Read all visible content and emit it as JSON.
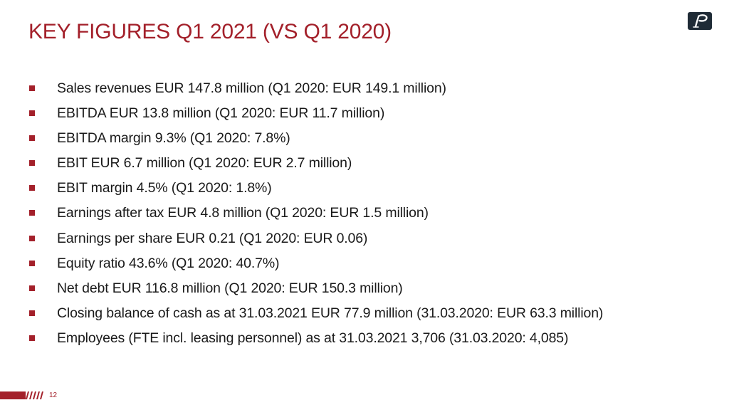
{
  "slide": {
    "title": "KEY FIGURES Q1 2021 (VS Q1 2020)",
    "page_number": "12",
    "logo_icon": "company-logo-p",
    "accent_color": "#a3202a",
    "bullets": [
      "Sales revenues EUR 147.8 million (Q1 2020: EUR 149.1 million)",
      "EBITDA EUR 13.8 million (Q1 2020: EUR 11.7 million)",
      "EBITDA margin 9.3% (Q1 2020: 7.8%)",
      "EBIT EUR 6.7 million (Q1 2020: EUR 2.7 million)",
      "EBIT margin 4.5% (Q1 2020: 1.8%)",
      "Earnings after tax EUR 4.8 million (Q1 2020: EUR 1.5 million)",
      "Earnings per share EUR 0.21 (Q1 2020: EUR 0.06)",
      "Equity ratio 43.6% (Q1 2020: 40.7%)",
      "Net debt EUR 116.8 million (Q1 2020: EUR 150.3 million)",
      "Closing balance of cash as at 31.03.2021 EUR 77.9 million (31.03.2020: EUR 63.3 million)",
      "Employees (FTE incl. leasing personnel) as at 31.03.2021 3,706 (31.03.2020: 4,085)"
    ]
  }
}
